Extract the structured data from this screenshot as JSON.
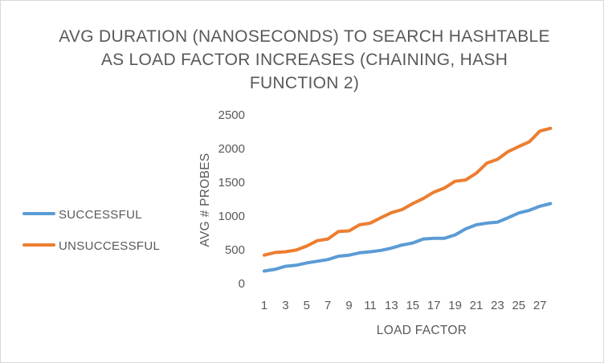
{
  "chart_data": {
    "type": "line",
    "title": "AVG DURATION (NANOSECONDS) TO SEARCH HASHTABLE AS LOAD FACTOR INCREASES (CHAINING, HASH FUNCTION 2)",
    "title_lines": [
      "AVG DURATION (NANOSECONDS) TO SEARCH HASHTABLE",
      "AS LOAD FACTOR INCREASES (CHAINING, HASH",
      "FUNCTION 2)"
    ],
    "xlabel": "LOAD FACTOR",
    "ylabel": "AVG # PROBES",
    "x": [
      1,
      2,
      3,
      4,
      5,
      6,
      7,
      8,
      9,
      10,
      11,
      12,
      13,
      14,
      15,
      16,
      17,
      18,
      19,
      20,
      21,
      22,
      23,
      24,
      25,
      26,
      27,
      28
    ],
    "x_tick_labels": [
      "1",
      "3",
      "5",
      "7",
      "9",
      "11",
      "13",
      "15",
      "17",
      "19",
      "21",
      "23",
      "25",
      "27"
    ],
    "y_ticks": [
      0,
      500,
      1000,
      1500,
      2000,
      2500
    ],
    "y_tick_labels": [
      "0",
      "500",
      "1000",
      "1500",
      "2000",
      "2500"
    ],
    "ylim": [
      0,
      2500
    ],
    "grid": false,
    "legend_position": "left",
    "series": [
      {
        "name": "SUCCESSFUL",
        "color": "#5b9bd5",
        "values": [
          185,
          210,
          255,
          270,
          305,
          330,
          355,
          405,
          420,
          455,
          470,
          490,
          525,
          570,
          600,
          660,
          670,
          670,
          720,
          810,
          870,
          895,
          910,
          975,
          1045,
          1085,
          1145,
          1185
        ]
      },
      {
        "name": "UNSUCCESSFUL",
        "color": "#ed7d31",
        "values": [
          420,
          460,
          470,
          495,
          555,
          635,
          660,
          770,
          780,
          870,
          895,
          975,
          1050,
          1095,
          1185,
          1260,
          1355,
          1415,
          1515,
          1535,
          1635,
          1785,
          1840,
          1955,
          2030,
          2100,
          2260,
          2300
        ]
      }
    ]
  }
}
